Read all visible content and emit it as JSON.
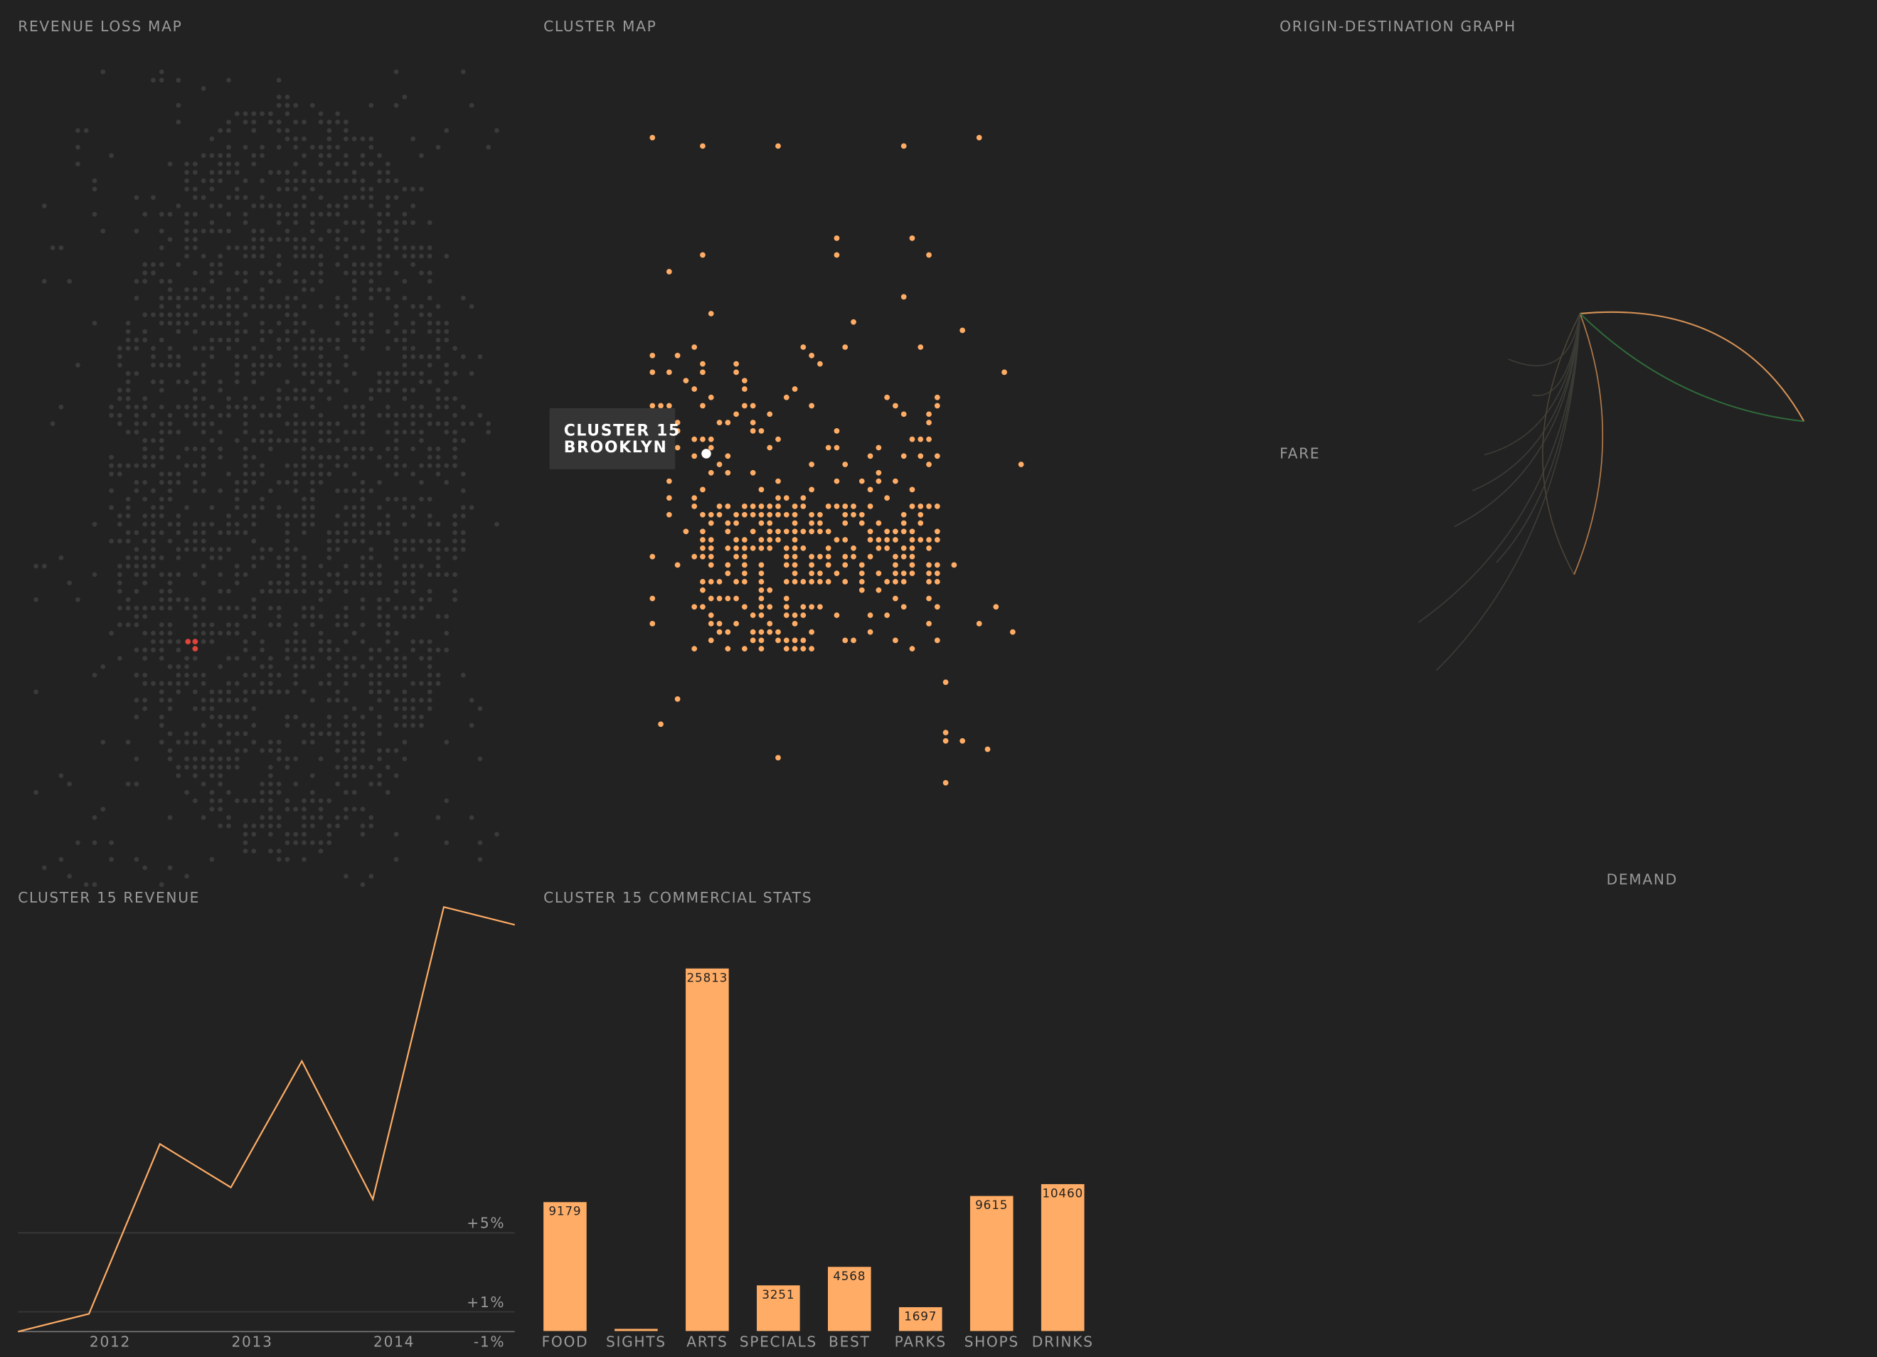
{
  "panels": {
    "revenue_loss_map": {
      "title": "REVENUE LOSS MAP"
    },
    "cluster_map": {
      "title": "CLUSTER MAP",
      "tooltip": {
        "line1": "CLUSTER 15",
        "line2": "BROOKLYN"
      }
    },
    "od_graph": {
      "title": "ORIGIN-DESTINATION GRAPH",
      "y_label": "FARE",
      "x_label": "DEMAND"
    }
  },
  "chart_data": [
    {
      "type": "line",
      "title": "CLUSTER 15 REVENUE",
      "x": [
        2011.35,
        2011.85,
        2012.35,
        2012.85,
        2013.35,
        2013.85,
        2014.35,
        2014.85
      ],
      "values": [
        0,
        0.9,
        9.5,
        7.3,
        13.7,
        6.7,
        21.5,
        20.6
      ],
      "color": "#ffad66",
      "xlim": [
        2011.35,
        2014.85
      ],
      "xticks": [
        2012,
        2013,
        2014
      ],
      "ylim": [
        -1,
        22
      ],
      "yticks": [
        {
          "value": -1,
          "label": "-1%"
        },
        {
          "value": 1,
          "label": "+1%"
        },
        {
          "value": 5,
          "label": "+5%"
        }
      ],
      "grid": true
    },
    {
      "type": "bar",
      "title": "CLUSTER 15 COMMERCIAL STATS",
      "categories": [
        "FOOD",
        "SIGHTS",
        "ARTS",
        "SPECIALS",
        "BEST",
        "PARKS",
        "SHOPS",
        "DRINKS"
      ],
      "values": [
        9179,
        154,
        25813,
        3251,
        4568,
        1697,
        9615,
        10460
      ],
      "color": "#ffad66",
      "ylim": [
        0,
        30000
      ]
    }
  ]
}
